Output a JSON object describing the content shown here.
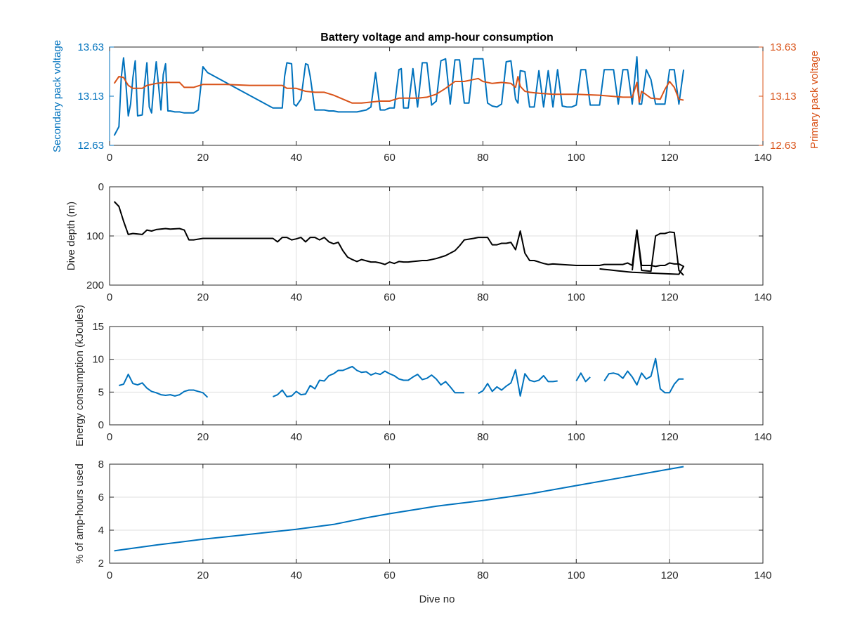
{
  "figure": {
    "title": "Battery voltage and amp-hour consumption",
    "xlabel": "Dive no"
  },
  "colors": {
    "blue": "#0072bd",
    "orange": "#d95319",
    "black": "#000000"
  },
  "chart_data": [
    {
      "type": "line",
      "title": "Battery voltage and amp-hour consumption",
      "xlabel": "",
      "ylabel": "Secondary pack voltage",
      "ylabel_right": "Primary pack voltage",
      "xlim": [
        0,
        140
      ],
      "xticks": [
        0,
        20,
        40,
        60,
        80,
        100,
        120,
        140
      ],
      "ylim": [
        12.63,
        13.63
      ],
      "yticks": [
        "12.63",
        "13.13",
        "13.63"
      ],
      "ylim_right": [
        12.63,
        13.63
      ],
      "yticks_right": [
        "12.63",
        "13.13",
        "13.63"
      ],
      "grid": false,
      "series": [
        {
          "color": "blue",
          "axis": "left",
          "x": [
            1,
            2,
            2.5,
            3,
            3.5,
            4,
            4.5,
            5,
            5.5,
            6,
            7,
            7.5,
            8,
            8.5,
            9,
            9.5,
            10,
            11,
            11.5,
            12,
            12.5,
            13,
            14,
            15,
            16,
            17,
            18,
            19,
            20,
            21,
            35,
            36,
            37,
            37.5,
            38,
            39,
            39.5,
            40,
            41,
            42,
            42.5,
            43,
            44,
            45,
            46,
            47,
            48,
            49,
            50,
            51,
            52,
            53,
            54,
            55,
            56,
            57,
            58,
            59,
            60,
            61,
            62,
            62.5,
            63,
            64,
            65,
            66,
            67,
            68,
            69,
            70,
            71,
            72,
            73,
            74,
            75,
            76,
            77,
            78,
            79,
            80,
            81,
            82,
            83,
            84,
            85,
            86,
            87,
            87.5,
            88,
            89,
            90,
            91,
            92,
            93,
            94,
            95,
            96,
            97,
            98,
            99,
            100,
            101,
            102,
            103,
            104,
            105,
            106,
            107,
            108,
            109,
            110,
            111,
            112,
            113,
            113.5,
            114,
            115,
            116,
            117,
            118,
            119,
            120,
            121,
            122,
            123
          ],
          "y": [
            12.73,
            12.82,
            13.32,
            13.52,
            13.25,
            12.93,
            13.05,
            13.32,
            13.49,
            12.93,
            12.94,
            13.25,
            13.47,
            13.02,
            12.96,
            13.26,
            13.48,
            12.99,
            13.35,
            13.46,
            12.98,
            12.98,
            12.97,
            12.97,
            12.96,
            12.96,
            12.96,
            12.99,
            13.43,
            13.37,
            13.01,
            13.01,
            13.01,
            13.33,
            13.47,
            13.46,
            13.05,
            13.03,
            13.1,
            13.46,
            13.45,
            13.33,
            12.99,
            12.99,
            12.99,
            12.98,
            12.98,
            12.97,
            12.97,
            12.97,
            12.97,
            12.97,
            12.98,
            12.99,
            13.02,
            13.37,
            12.99,
            12.99,
            13.01,
            13.01,
            13.4,
            13.41,
            13.01,
            13.01,
            13.41,
            13.02,
            13.47,
            13.47,
            13.04,
            13.08,
            13.49,
            13.51,
            13.05,
            13.5,
            13.5,
            13.06,
            13.06,
            13.51,
            13.51,
            13.51,
            13.06,
            13.03,
            13.02,
            13.05,
            13.48,
            13.49,
            13.1,
            13.06,
            13.39,
            13.38,
            13.02,
            13.02,
            13.39,
            13.02,
            13.39,
            13.02,
            13.4,
            13.03,
            13.02,
            13.02,
            13.04,
            13.4,
            13.4,
            13.04,
            13.04,
            13.04,
            13.4,
            13.4,
            13.4,
            13.05,
            13.4,
            13.4,
            13.05,
            13.53,
            13.05,
            13.05,
            13.4,
            13.3,
            13.05,
            13.05,
            13.05,
            13.4,
            13.4,
            13.05,
            13.4
          ]
        },
        {
          "color": "orange",
          "axis": "right",
          "x": [
            1,
            2,
            3,
            4,
            5,
            6,
            7,
            8,
            10,
            12,
            14,
            15,
            16,
            17,
            18,
            20,
            25,
            30,
            35,
            37,
            38,
            40,
            42,
            44,
            46,
            48,
            50,
            52,
            54,
            56,
            58,
            60,
            62,
            64,
            66,
            68,
            70,
            72,
            74,
            76,
            78,
            79,
            80,
            82,
            84,
            86,
            87,
            87.5,
            88,
            89,
            90,
            92,
            95,
            100,
            105,
            110,
            112,
            113,
            113.5,
            114,
            116,
            118,
            119,
            120,
            121,
            122,
            123
          ],
          "y": [
            13.26,
            13.33,
            13.32,
            13.24,
            13.21,
            13.21,
            13.21,
            13.24,
            13.26,
            13.27,
            13.27,
            13.27,
            13.22,
            13.22,
            13.22,
            13.25,
            13.25,
            13.24,
            13.24,
            13.24,
            13.21,
            13.21,
            13.18,
            13.17,
            13.17,
            13.14,
            13.1,
            13.06,
            13.06,
            13.07,
            13.08,
            13.08,
            13.11,
            13.11,
            13.11,
            13.12,
            13.15,
            13.21,
            13.28,
            13.28,
            13.3,
            13.31,
            13.28,
            13.26,
            13.27,
            13.26,
            13.22,
            13.33,
            13.23,
            13.18,
            13.17,
            13.16,
            13.15,
            13.15,
            13.14,
            13.12,
            13.12,
            13.27,
            13.07,
            13.18,
            13.11,
            13.1,
            13.2,
            13.28,
            13.22,
            13.1,
            13.09
          ]
        }
      ]
    },
    {
      "type": "line",
      "title": "",
      "xlabel": "",
      "ylabel": "Dive depth (m)",
      "xlim": [
        0,
        140
      ],
      "xticks": [
        0,
        20,
        40,
        60,
        80,
        100,
        120,
        140
      ],
      "ylim": [
        0,
        200
      ],
      "yticks": [
        "0",
        "100",
        "200"
      ],
      "y_reversed": true,
      "grid": true,
      "series": [
        {
          "color": "black",
          "x": [
            1,
            2,
            3,
            4,
            5,
            7,
            8,
            9,
            10,
            12,
            13,
            15,
            16,
            17,
            18,
            20,
            25,
            30,
            35,
            36,
            37,
            38,
            39,
            40,
            41,
            42,
            43,
            44,
            45,
            46,
            47,
            48,
            49,
            50,
            51,
            52,
            53,
            54,
            56,
            57,
            58,
            59,
            60,
            61,
            62,
            63,
            64,
            65,
            66,
            67,
            68,
            70,
            72,
            74,
            75,
            76,
            78,
            79,
            80,
            81,
            82,
            83,
            84,
            85,
            86,
            87,
            88,
            89,
            90,
            91,
            92,
            93,
            94,
            95,
            100,
            105,
            106,
            108,
            110,
            111,
            112,
            113,
            114,
            115,
            116,
            117,
            118,
            119,
            120,
            121,
            122,
            123,
            122,
            112,
            111,
            110,
            109,
            108,
            107,
            106,
            105
          ],
          "y": [
            30,
            40,
            70,
            97,
            95,
            97,
            88,
            90,
            87,
            85,
            86,
            85,
            88,
            108,
            108,
            105,
            105,
            105,
            105,
            112,
            103,
            103,
            108,
            106,
            103,
            112,
            103,
            103,
            108,
            103,
            112,
            116,
            113,
            130,
            143,
            148,
            152,
            148,
            153,
            153,
            155,
            158,
            153,
            156,
            152,
            153,
            153,
            152,
            151,
            150,
            150,
            146,
            140,
            130,
            120,
            108,
            105,
            103,
            103,
            103,
            118,
            118,
            115,
            115,
            113,
            128,
            90,
            135,
            150,
            150,
            153,
            156,
            158,
            157,
            160,
            160,
            158,
            158,
            158,
            155,
            160,
            88,
            160,
            160,
            160,
            162,
            160,
            160,
            155,
            157,
            157,
            162,
            178,
            174,
            173,
            172,
            171,
            170,
            169,
            168,
            167
          ],
          "extra_segments": [
            {
              "x": [
                112,
                113,
                114,
                116,
                117,
                118,
                119,
                120,
                121,
                122,
                123
              ],
              "y": [
                170,
                88,
                170,
                172,
                100,
                95,
                95,
                92,
                93,
                170,
                180
              ]
            }
          ]
        }
      ]
    },
    {
      "type": "line",
      "title": "",
      "xlabel": "",
      "ylabel": "Energy consumption (kJoules)",
      "xlim": [
        0,
        140
      ],
      "xticks": [
        0,
        20,
        40,
        60,
        80,
        100,
        120,
        140
      ],
      "ylim": [
        0,
        15
      ],
      "yticks": [
        "0",
        "5",
        "10",
        "15"
      ],
      "grid": true,
      "series": [
        {
          "color": "blue",
          "segments": [
            {
              "x": [
                2,
                3,
                4,
                5,
                6,
                7,
                8,
                9,
                10,
                11,
                12,
                13,
                14,
                15,
                16,
                17,
                18,
                19,
                20,
                21
              ],
              "y": [
                6.0,
                6.2,
                7.7,
                6.3,
                6.1,
                6.4,
                5.6,
                5.1,
                4.9,
                4.6,
                4.5,
                4.6,
                4.4,
                4.6,
                5.1,
                5.3,
                5.3,
                5.1,
                4.9,
                4.2
              ]
            },
            {
              "x": [
                35,
                36,
                37,
                38,
                39,
                40,
                41,
                42,
                43,
                44,
                45,
                46,
                47,
                48,
                49,
                50,
                51,
                52,
                53,
                54,
                55,
                56,
                57,
                58,
                59,
                60,
                61,
                62,
                63,
                64,
                65,
                66,
                67,
                68,
                69,
                70,
                71,
                72,
                73,
                74,
                75,
                76
              ],
              "y": [
                4.3,
                4.6,
                5.3,
                4.3,
                4.4,
                5.1,
                4.6,
                4.7,
                6.0,
                5.5,
                6.8,
                6.7,
                7.5,
                7.8,
                8.3,
                8.3,
                8.6,
                8.9,
                8.3,
                8.0,
                8.1,
                7.6,
                7.9,
                7.7,
                8.2,
                7.8,
                7.5,
                7.0,
                6.8,
                6.8,
                7.3,
                7.7,
                6.9,
                7.1,
                7.6,
                7.0,
                6.1,
                6.6,
                5.8,
                4.9,
                4.9,
                4.9
              ]
            },
            {
              "x": [
                79,
                80,
                81,
                82,
                83,
                84,
                85,
                86,
                87,
                88,
                89,
                90,
                91,
                92,
                93,
                94,
                95,
                96
              ],
              "y": [
                4.8,
                5.2,
                6.3,
                5.1,
                5.8,
                5.3,
                5.9,
                6.4,
                8.4,
                4.4,
                7.8,
                6.8,
                6.6,
                6.8,
                7.5,
                6.6,
                6.6,
                6.7
              ]
            },
            {
              "x": [
                100,
                101,
                102,
                103
              ],
              "y": [
                6.7,
                7.9,
                6.6,
                7.3
              ]
            },
            {
              "x": [
                106,
                107,
                108,
                109,
                110,
                111,
                112,
                113,
                114,
                115,
                116,
                117,
                118,
                119,
                120,
                121,
                122,
                123
              ],
              "y": [
                6.7,
                7.8,
                7.9,
                7.7,
                7.1,
                8.2,
                7.3,
                6.1,
                7.9,
                7.0,
                7.4,
                10.1,
                5.5,
                4.9,
                4.9,
                6.2,
                7.0,
                7.0
              ]
            }
          ]
        }
      ]
    },
    {
      "type": "line",
      "title": "",
      "xlabel": "Dive no",
      "ylabel": "% of amp-hours used",
      "xlim": [
        0,
        140
      ],
      "xticks": [
        0,
        20,
        40,
        60,
        80,
        100,
        120,
        140
      ],
      "ylim": [
        2,
        8
      ],
      "yticks": [
        "2",
        "4",
        "6",
        "8"
      ],
      "grid": true,
      "series": [
        {
          "color": "blue",
          "x": [
            1,
            10,
            20,
            30,
            40,
            48,
            55,
            60,
            70,
            80,
            90,
            100,
            110,
            120,
            123
          ],
          "y": [
            2.75,
            3.1,
            3.45,
            3.75,
            4.05,
            4.35,
            4.75,
            5.0,
            5.45,
            5.8,
            6.2,
            6.7,
            7.2,
            7.7,
            7.85
          ]
        }
      ]
    }
  ]
}
